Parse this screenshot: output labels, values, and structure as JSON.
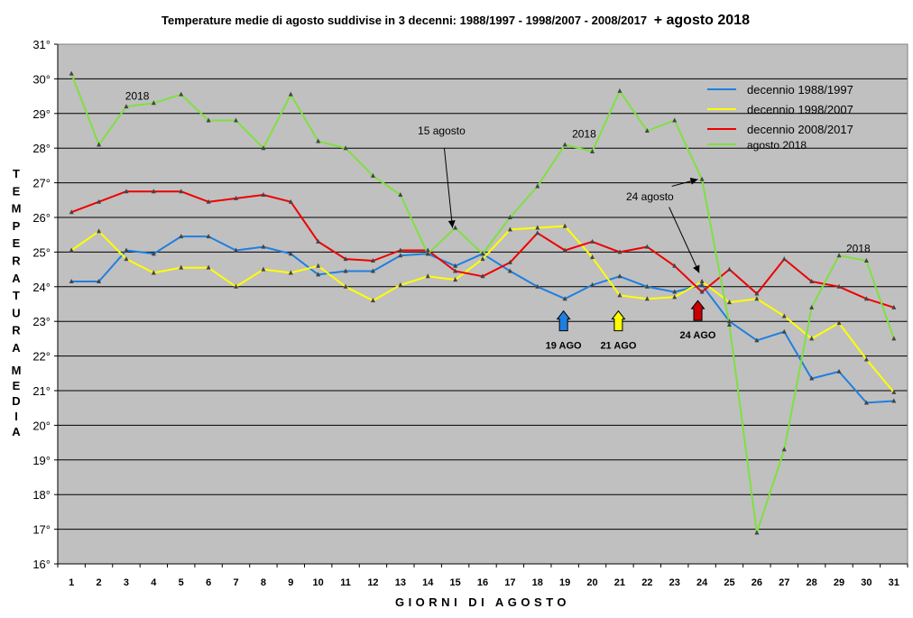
{
  "chart_data": {
    "type": "line",
    "title": "Temperature medie di agosto suddivise in 3 decenni: 1988/1997 - 1998/2007 - 2008/2017 + agosto 2018",
    "title_parts": [
      "Temperature medie di agosto suddivise in 3 decenni: 1988/1997 - 1998/2007 - 2008/2017",
      "+ agosto 2018"
    ],
    "xlabel": "GIORNI DI AGOSTO",
    "ylabel_upper": "TEMPERATURA",
    "ylabel_lower": "MEDIA",
    "ylim": [
      16,
      31
    ],
    "y_ticks": [
      "16°",
      "17°",
      "18°",
      "19°",
      "20°",
      "21°",
      "22°",
      "23°",
      "24°",
      "25°",
      "26°",
      "27°",
      "28°",
      "29°",
      "30°",
      "31°"
    ],
    "x": [
      1,
      2,
      3,
      4,
      5,
      6,
      7,
      8,
      9,
      10,
      11,
      12,
      13,
      14,
      15,
      16,
      17,
      18,
      19,
      20,
      21,
      22,
      23,
      24,
      25,
      26,
      27,
      28,
      29,
      30,
      31
    ],
    "x_ticks": [
      "1",
      "2",
      "3",
      "4",
      "5",
      "6",
      "7",
      "8",
      "9",
      "10",
      "11",
      "12",
      "13",
      "14",
      "15",
      "16",
      "17",
      "18",
      "19",
      "20",
      "21",
      "22",
      "23",
      "24",
      "25",
      "26",
      "27",
      "28",
      "29",
      "30",
      "31"
    ],
    "grid": "horizontal",
    "background": "#c0c0c0",
    "legend_position": "top-right",
    "series": [
      {
        "name": "decennio 1988/1997",
        "color": "#1f7fe0",
        "values": [
          24.15,
          24.15,
          25.05,
          24.95,
          25.45,
          25.45,
          25.05,
          25.15,
          24.95,
          24.35,
          24.45,
          24.45,
          24.9,
          24.95,
          24.6,
          24.95,
          24.45,
          24.0,
          23.65,
          24.05,
          24.3,
          24.0,
          23.85,
          24.05,
          23.0,
          22.45,
          22.7,
          21.35,
          21.55,
          20.65,
          20.7
        ]
      },
      {
        "name": "decennio 1998/2007",
        "color": "#ffff00",
        "values": [
          25.05,
          25.6,
          24.8,
          24.4,
          24.55,
          24.55,
          24.0,
          24.5,
          24.4,
          24.6,
          24.0,
          23.6,
          24.05,
          24.3,
          24.2,
          24.8,
          25.65,
          25.7,
          25.75,
          24.85,
          23.75,
          23.65,
          23.7,
          24.15,
          23.55,
          23.65,
          23.15,
          22.5,
          22.95,
          21.9,
          20.95
        ]
      },
      {
        "name": "decennio 2008/2017",
        "color": "#ee0000",
        "values": [
          26.15,
          26.45,
          26.75,
          26.75,
          26.75,
          26.45,
          26.55,
          26.65,
          26.45,
          25.3,
          24.8,
          24.75,
          25.05,
          25.05,
          24.45,
          24.3,
          24.7,
          25.55,
          25.05,
          25.3,
          25.0,
          25.15,
          24.6,
          23.85,
          24.5,
          23.8,
          24.8,
          24.15,
          24.0,
          23.65,
          23.4
        ]
      },
      {
        "name": "agosto 2018",
        "color": "#7fe040",
        "values": [
          30.15,
          28.1,
          29.2,
          29.3,
          29.55,
          28.8,
          28.8,
          28.0,
          29.55,
          28.2,
          28.0,
          27.2,
          26.65,
          24.95,
          25.7,
          24.95,
          26.0,
          26.9,
          28.1,
          27.9,
          29.65,
          28.5,
          28.8,
          27.1,
          22.9,
          16.9,
          19.3,
          23.4,
          24.9,
          24.75,
          22.5
        ]
      }
    ],
    "annotations": {
      "label_2018_a": {
        "text": "2018",
        "x": 3.4,
        "y": 29.4
      },
      "label_2018_b": {
        "text": "2018",
        "x": 19.7,
        "y": 28.3
      },
      "label_2018_c": {
        "text": "2018",
        "x": 29.7,
        "y": 25.0
      },
      "label_15_agosto": {
        "text": "15 agosto",
        "x": 14.5,
        "y": 28.4,
        "point_x": 14.9,
        "point_y": 25.7,
        "text_anchor_x": 14.6,
        "text_anchor_y": 28.0
      },
      "label_24_agosto": {
        "text": "24 agosto",
        "x": 22.1,
        "y": 26.5,
        "point_x": 23.9,
        "point_y": 24.4,
        "text_anchor_x": 22.8,
        "text_anchor_y": 26.3,
        "up_x": 22.9,
        "up_y": 26.9,
        "up_point_x": 23.85,
        "up_point_y": 27.1
      },
      "arrow_19": {
        "text": "19 AGO",
        "color": "#1f7fe0",
        "x": 18.95,
        "y": 23.3
      },
      "arrow_21": {
        "text": "21 AGO",
        "color": "#ffff00",
        "x": 20.95,
        "y": 23.3
      },
      "arrow_24": {
        "text": "24 AGO",
        "color": "#cc0000",
        "x": 23.85,
        "y": 23.6
      }
    }
  }
}
